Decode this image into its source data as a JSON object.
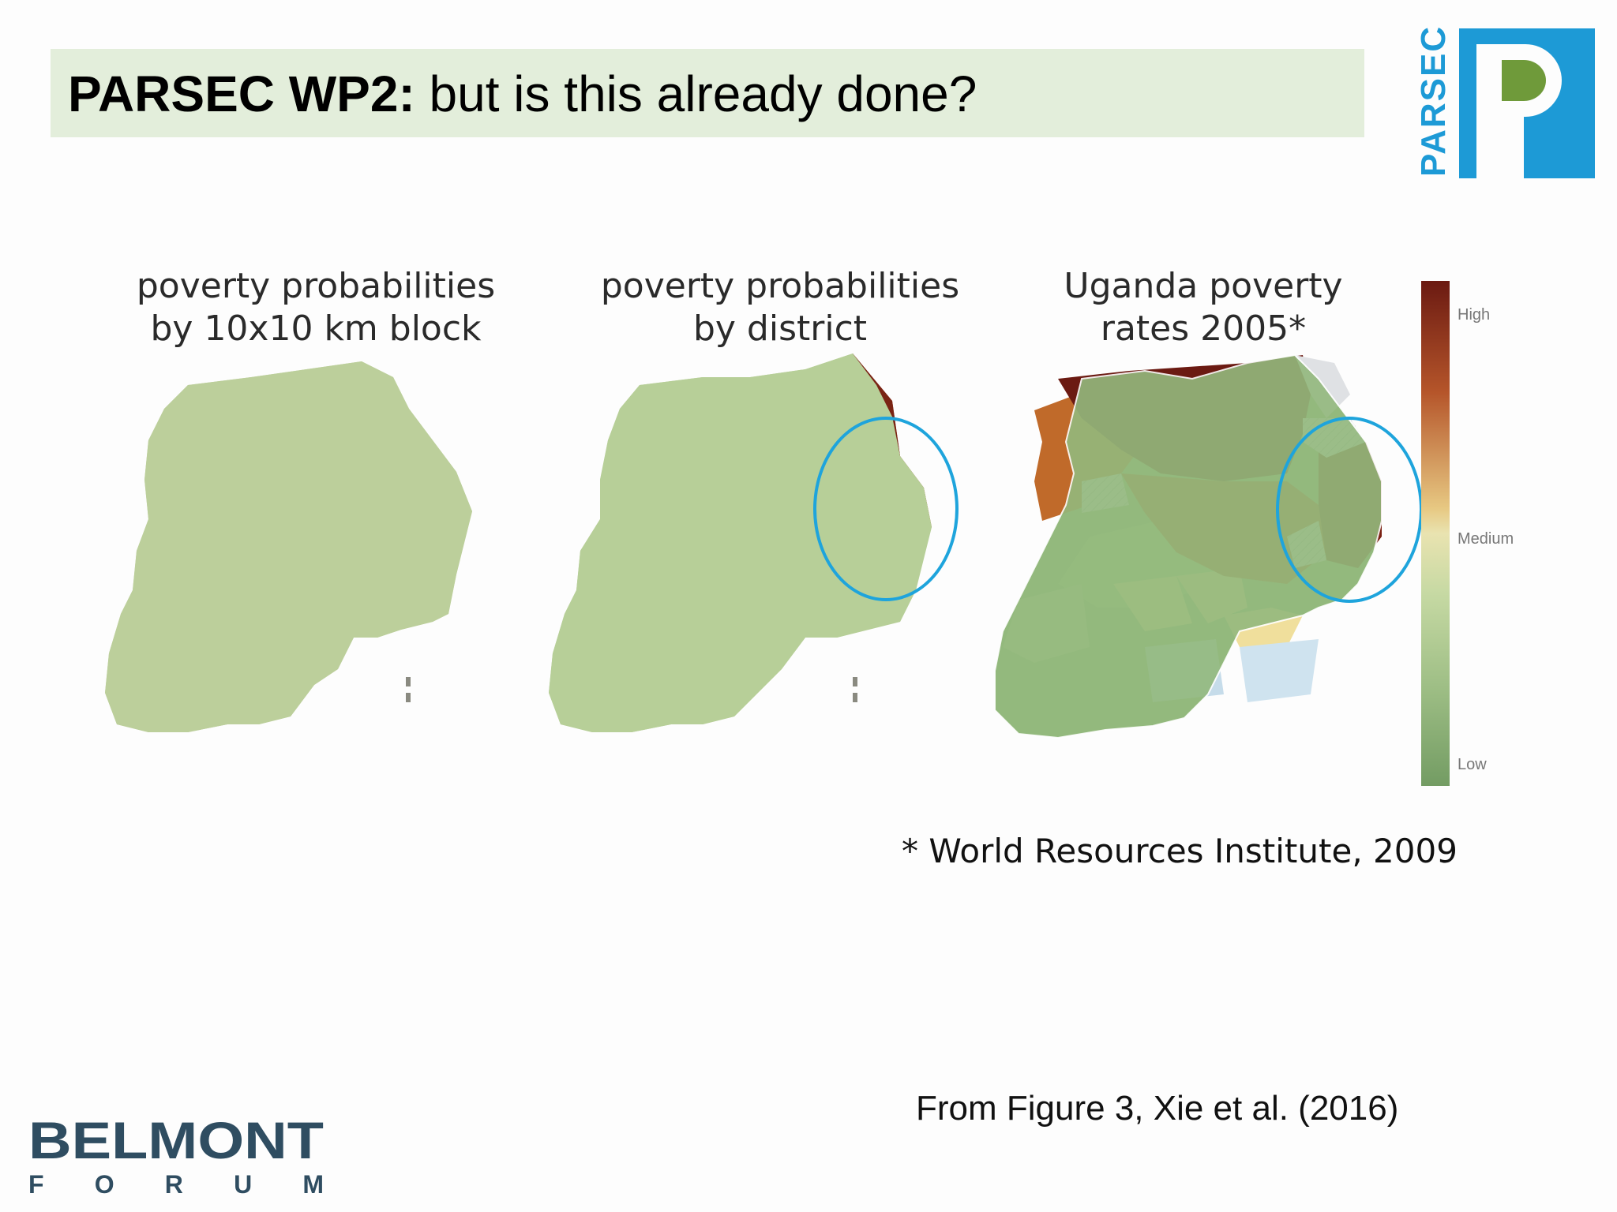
{
  "slide": {
    "title_bold": "PARSEC WP2:",
    "title_rest": " but is this already done?",
    "logo_text": "PARSEC"
  },
  "maps": [
    {
      "label_line1": "poverty probabilities",
      "label_line2": "by 10x10 km block"
    },
    {
      "label_line1": "poverty probabilities",
      "label_line2": "by district"
    },
    {
      "label_line1": "Uganda poverty",
      "label_line2": "rates 2005*"
    }
  ],
  "legend": {
    "high": "High",
    "medium": "Medium",
    "low": "Low"
  },
  "citation": "* World Resources Institute, 2009",
  "source": "From Figure 3, Xie et al. (2016)",
  "footer_logo": {
    "line1": "BELMONT",
    "line2": "FORUM"
  },
  "colors": {
    "high": "#6b1a12",
    "medium": "#e9e3b0",
    "low": "#739c63",
    "accent": "#1ea4dc",
    "logo_green": "#6f9a3a"
  }
}
